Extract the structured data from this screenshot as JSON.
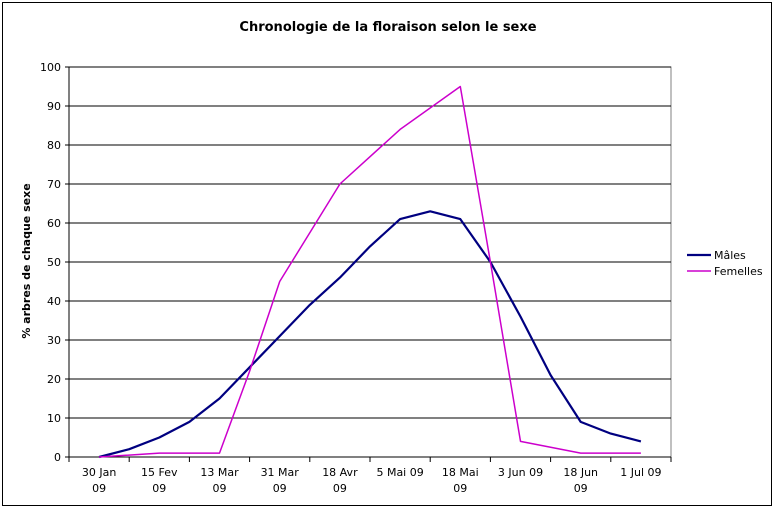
{
  "chart_data": {
    "type": "line",
    "title": "Chronologie de la floraison selon le sexe",
    "xlabel": "",
    "ylabel": "% arbres de chaque sexe",
    "ylim": [
      0,
      100
    ],
    "yticks": [
      0,
      10,
      20,
      30,
      40,
      50,
      60,
      70,
      80,
      90,
      100
    ],
    "grid": "horizontal",
    "legend_position": "right",
    "x_tick_labels": [
      [
        "30 Jan",
        "09"
      ],
      [
        "15 Fev",
        "09"
      ],
      [
        "13 Mar",
        "09"
      ],
      [
        "31 Mar",
        "09"
      ],
      [
        "18 Avr",
        "09"
      ],
      [
        "5 Mai 09",
        ""
      ],
      [
        "18 Mai",
        "09"
      ],
      [
        "3 Jun 09",
        ""
      ],
      [
        "18 Jun",
        "09"
      ],
      [
        "1 Jul 09",
        ""
      ]
    ],
    "series": [
      {
        "name": "Mâles",
        "color": "#000080",
        "x": [
          0.5,
          1.0,
          1.5,
          2.0,
          2.5,
          3.0,
          3.5,
          4.0,
          4.5,
          5.0,
          5.5,
          6.0,
          6.5,
          7.0,
          7.5,
          8.0,
          8.5,
          9.0,
          9.5
        ],
        "values": [
          0,
          2,
          5,
          9,
          15,
          23,
          31,
          39,
          46,
          54,
          61,
          63,
          61,
          50,
          36,
          21,
          9,
          6,
          4
        ]
      },
      {
        "name": "Femelles",
        "color": "#CC00CC",
        "x": [
          0.5,
          1.5,
          2.5,
          3.0,
          3.5,
          4.5,
          5.5,
          6.5,
          7.0,
          7.5,
          8.5,
          9.5
        ],
        "values": [
          0,
          1,
          1,
          22,
          45,
          70,
          84,
          95,
          50,
          4,
          1,
          1
        ]
      }
    ]
  }
}
